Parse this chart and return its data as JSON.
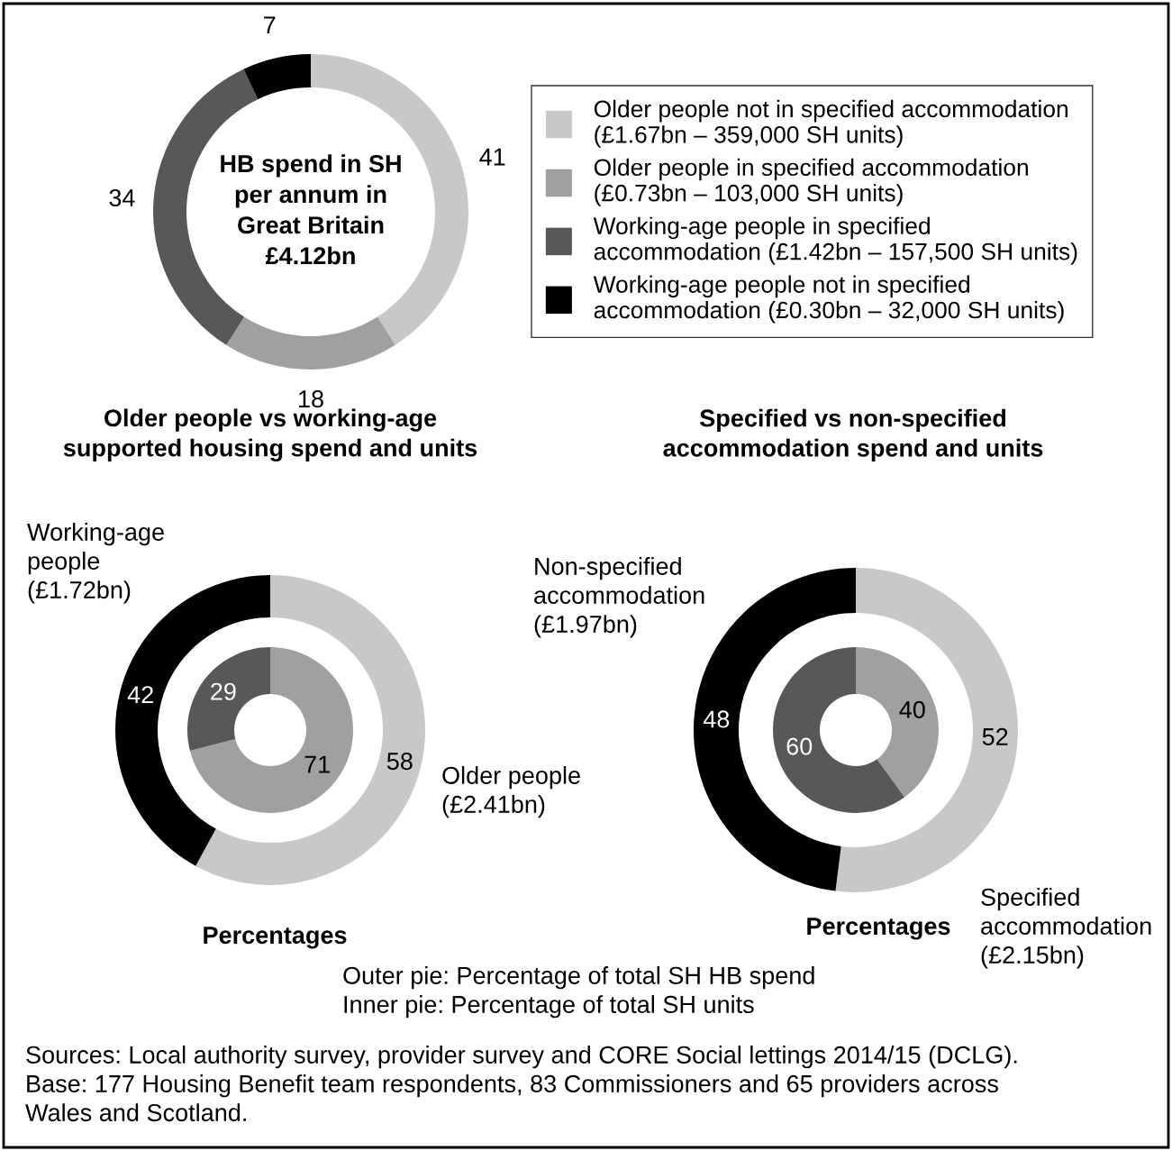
{
  "chart_data": [
    {
      "type": "donut",
      "title": "HB spend in SH\nper annum in\nGreat Britain\n£4.12bn",
      "categories": [
        "Older people not in specified accommodation\n(£1.67bn – 359,000 SH units)",
        "Older people in specified accommodation\n(£0.73bn – 103,000 SH units)",
        "Working-age people in specified\naccommodation (£1.42bn – 157,500 SH units)",
        "Working-age people not in specified\naccommodation (£0.30bn – 32,000 SH units)"
      ],
      "values": [
        41,
        18,
        34,
        7
      ],
      "colors": [
        "#c8c8c9",
        "#a0a0a1",
        "#58585a",
        "#000000"
      ],
      "data_labels": true,
      "legend": "right"
    },
    {
      "type": "donut",
      "title": "Older people vs working-age\nsupported housing spend and units",
      "xlabel": "Percentages",
      "categories": [
        "Older people\n(£2.41bn)",
        "Working-age\npeople\n(£1.72bn)"
      ],
      "series": [
        {
          "values": [
            58,
            42
          ],
          "colors": [
            "#c8c8c9",
            "#000000"
          ]
        },
        {
          "values": [
            71,
            29
          ],
          "colors": [
            "#a0a0a1",
            "#58585a"
          ]
        }
      ],
      "data_labels": true
    },
    {
      "type": "donut",
      "title": "Specified vs non-specified\naccommodation spend and units",
      "xlabel": "Percentages",
      "categories": [
        "Specified\naccommodation\n(£2.15bn)",
        "Non-specified\naccommodation\n(£1.97bn)"
      ],
      "series": [
        {
          "values": [
            52,
            48
          ],
          "colors": [
            "#c8c8c9",
            "#000000"
          ]
        },
        {
          "values": [
            40,
            60
          ],
          "colors": [
            "#a0a0a1",
            "#58585a"
          ]
        }
      ],
      "data_labels": true,
      "annotations": [
        "Outer pie: Percentage of total SH HB spend\nInner pie: Percentage of total SH units",
        "Sources: Local authority survey, provider survey and CORE Social lettings 2014/15 (DCLG).\nBase: 177 Housing Benefit team respondents, 83 Commissioners and 65 providers across\nWales and Scotland."
      ]
    }
  ]
}
